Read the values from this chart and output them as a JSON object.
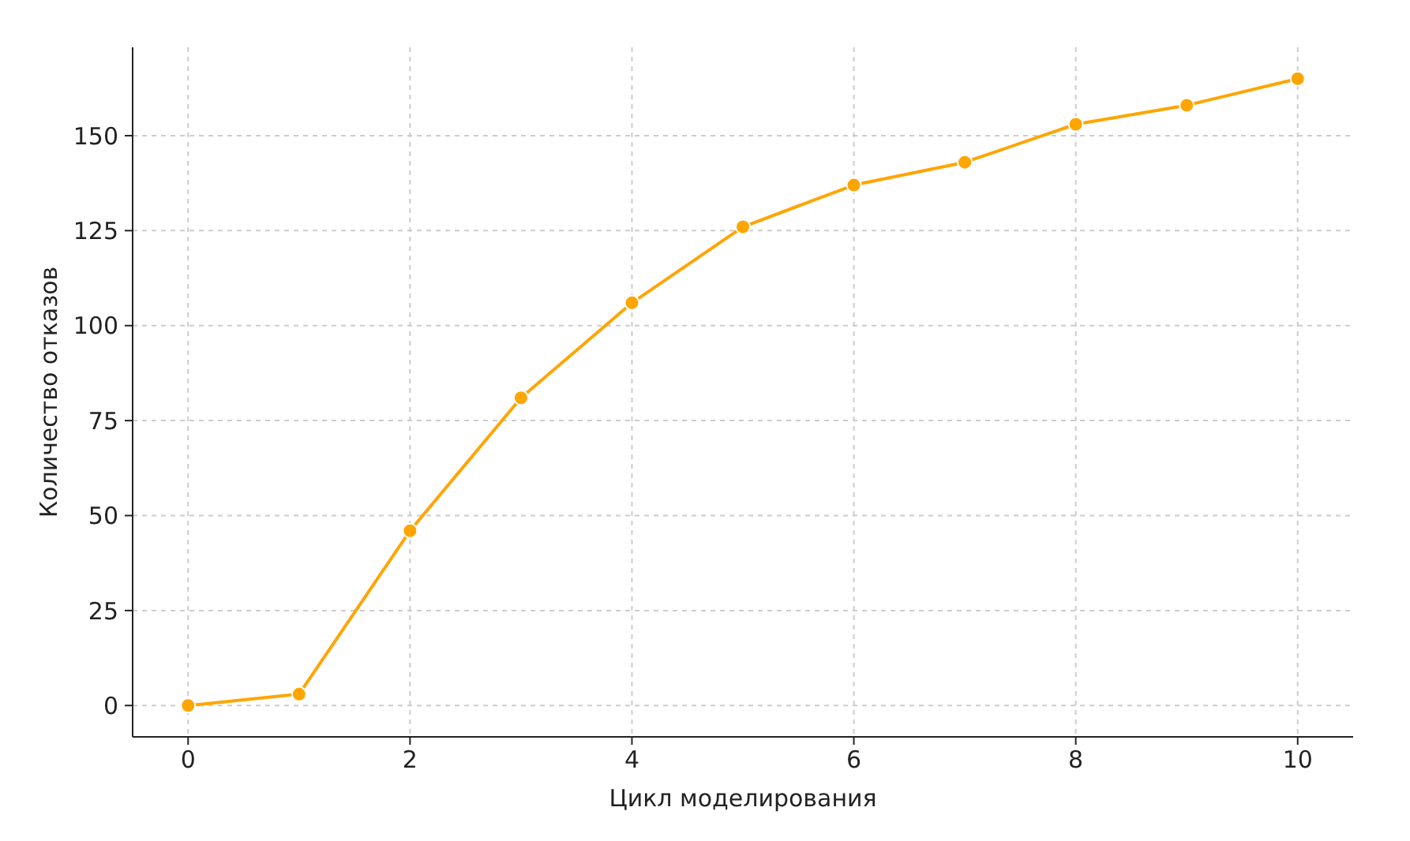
{
  "chart_data": {
    "type": "line",
    "xlabel": "Цикл моделирования",
    "ylabel": "Количество отказов",
    "x": [
      0,
      1,
      2,
      3,
      4,
      5,
      6,
      7,
      8,
      9,
      10
    ],
    "series": [
      {
        "color": "#ffa500",
        "values": [
          0,
          3,
          46,
          81,
          106,
          126,
          137,
          143,
          153,
          158,
          165
        ]
      }
    ],
    "xlim": [
      -0.5,
      10.5
    ],
    "ylim": [
      -8.25,
      173.25
    ],
    "xticks": [
      0,
      2,
      4,
      6,
      8,
      10
    ],
    "yticks": [
      0,
      25,
      50,
      75,
      100,
      125,
      150
    ],
    "grid": true,
    "marker": "circle",
    "line_style": "solid"
  }
}
